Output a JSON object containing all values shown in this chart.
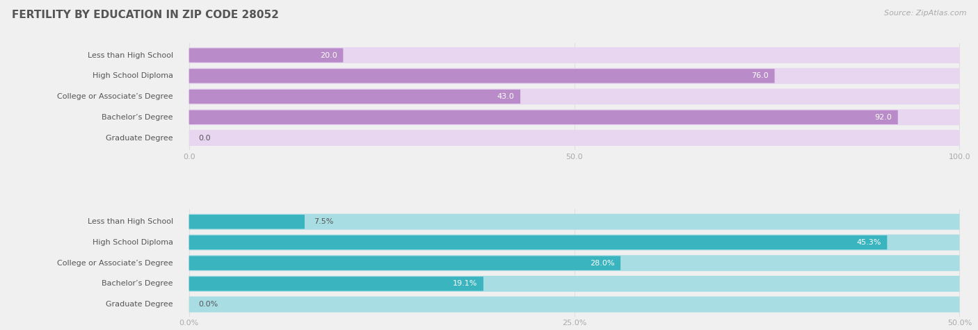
{
  "title": "FERTILITY BY EDUCATION IN ZIP CODE 28052",
  "source": "Source: ZipAtlas.com",
  "top_chart": {
    "categories": [
      "Less than High School",
      "High School Diploma",
      "College or Associate’s Degree",
      "Bachelor’s Degree",
      "Graduate Degree"
    ],
    "values": [
      20.0,
      76.0,
      43.0,
      92.0,
      0.0
    ],
    "value_labels": [
      "20.0",
      "76.0",
      "43.0",
      "92.0",
      "0.0"
    ],
    "bar_color": "#b98cc9",
    "row_bg_color": "#e8d5f0",
    "xmin": 0,
    "xmax": 100,
    "xticks": [
      0.0,
      50.0,
      100.0
    ],
    "xtick_labels": [
      "0.0",
      "50.0",
      "100.0"
    ]
  },
  "bottom_chart": {
    "categories": [
      "Less than High School",
      "High School Diploma",
      "College or Associate’s Degree",
      "Bachelor’s Degree",
      "Graduate Degree"
    ],
    "values": [
      7.5,
      45.3,
      28.0,
      19.1,
      0.0
    ],
    "value_labels": [
      "7.5%",
      "45.3%",
      "28.0%",
      "19.1%",
      "0.0%"
    ],
    "bar_color": "#3ab5c0",
    "row_bg_color": "#a8dde3",
    "xmin": 0,
    "xmax": 50,
    "xticks": [
      0.0,
      25.0,
      50.0
    ],
    "xtick_labels": [
      "0.0%",
      "25.0%",
      "50.0%"
    ]
  },
  "label_fontsize": 8.0,
  "value_fontsize": 8.0,
  "title_fontsize": 11,
  "source_fontsize": 8,
  "bg_color": "#f0f0f0",
  "panel_bg_color": "#f8f8f8",
  "white": "#ffffff",
  "text_color": "#555555",
  "tick_color": "#aaaaaa",
  "grid_color": "#e0e0e0"
}
